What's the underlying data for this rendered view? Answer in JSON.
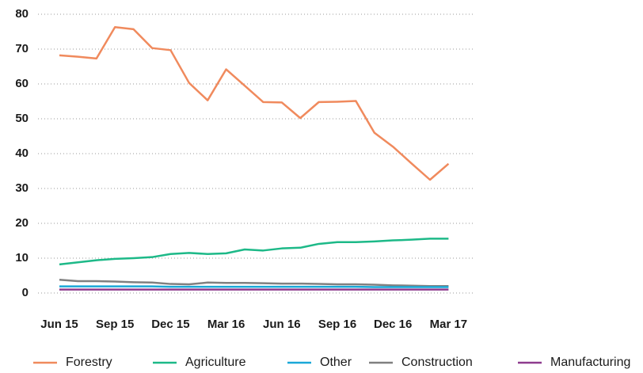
{
  "chart_data": {
    "type": "line",
    "categories": [
      "Jun 15",
      null,
      null,
      "Sep 15",
      null,
      null,
      "Dec 15",
      null,
      null,
      "Mar 16",
      null,
      null,
      "Jun 16",
      null,
      null,
      "Sep 16",
      null,
      null,
      "Dec 16",
      null,
      null,
      "Mar 17"
    ],
    "series": [
      {
        "name": "Forestry",
        "color": "#f08a5d",
        "values": [
          68.2,
          67.8,
          67.3,
          76.3,
          75.7,
          70.3,
          69.7,
          60.3,
          55.3,
          64.2,
          59.5,
          54.8,
          54.7,
          50.2,
          54.8,
          54.9,
          55.1,
          46.0,
          42.0,
          37.2,
          32.5,
          37.1
        ]
      },
      {
        "name": "Agriculture",
        "color": "#1db988",
        "values": [
          8.2,
          8.8,
          9.4,
          9.8,
          10.0,
          10.3,
          11.2,
          11.5,
          11.2,
          11.4,
          12.5,
          12.2,
          12.8,
          13.0,
          14.1,
          14.6,
          14.6,
          14.8,
          15.1,
          15.3,
          15.6,
          15.6
        ]
      },
      {
        "name": "Other",
        "color": "#1aa8d8",
        "values": [
          1.9,
          1.9,
          1.9,
          1.9,
          1.9,
          1.9,
          1.8,
          1.8,
          1.8,
          1.8,
          1.8,
          1.8,
          1.8,
          1.8,
          1.8,
          1.8,
          1.8,
          1.7,
          1.7,
          1.7,
          1.7,
          1.7
        ]
      },
      {
        "name": "Construction",
        "color": "#808080",
        "values": [
          3.8,
          3.4,
          3.4,
          3.3,
          3.1,
          3.0,
          2.6,
          2.5,
          3.0,
          2.9,
          2.9,
          2.8,
          2.7,
          2.7,
          2.6,
          2.5,
          2.5,
          2.4,
          2.2,
          2.1,
          2.0,
          2.0
        ]
      },
      {
        "name": "Manufacturing",
        "color": "#8e3b8e",
        "values": [
          1.0,
          1.0,
          1.0,
          1.0,
          1.0,
          1.0,
          1.0,
          1.0,
          1.0,
          1.0,
          1.0,
          1.0,
          1.0,
          1.0,
          1.0,
          1.0,
          1.0,
          1.0,
          1.0,
          1.0,
          1.0,
          1.0
        ]
      }
    ],
    "ylim": [
      0,
      80
    ],
    "yticks": [
      0,
      10,
      20,
      30,
      40,
      50,
      60,
      70,
      80
    ],
    "grid": true,
    "legend": "bottom"
  }
}
